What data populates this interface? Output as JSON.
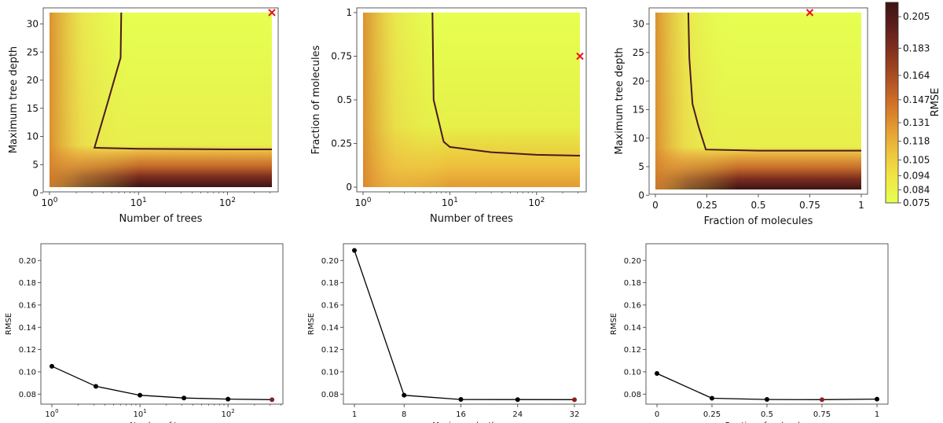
{
  "colormap": {
    "label": "RMSE",
    "min": 0.075,
    "max": 0.215,
    "ticks": [
      "0.075",
      "0.084",
      "0.094",
      "0.105",
      "0.118",
      "0.131",
      "0.147",
      "0.164",
      "0.183",
      "0.205"
    ],
    "stops": [
      "#e6ff50",
      "#f0e745",
      "#eec43c",
      "#e49a32",
      "#cf7028",
      "#ad4e23",
      "#86321f",
      "#5e1f1c",
      "#3d1415"
    ]
  },
  "marker_color": "#e8141c",
  "chart_data": [
    {
      "type": "heatmap",
      "id": "trees-vs-depth",
      "xlabel": "Number of trees",
      "ylabel": "Maximum tree depth",
      "xscale": "log",
      "xlim": [
        1,
        316
      ],
      "ylim": [
        1,
        32
      ],
      "xticks": [
        {
          "v": 1,
          "b": "10",
          "e": "0"
        },
        {
          "v": 10,
          "b": "10",
          "e": "1"
        },
        {
          "v": 100,
          "b": "10",
          "e": "2"
        }
      ],
      "yticks": [
        {
          "v": 0,
          "t": "0"
        },
        {
          "v": 5,
          "t": "5"
        },
        {
          "v": 10,
          "t": "10"
        },
        {
          "v": 15,
          "t": "15"
        },
        {
          "v": 20,
          "t": "20"
        },
        {
          "v": 25,
          "t": "25"
        },
        {
          "v": 30,
          "t": "30"
        }
      ],
      "contour": [
        [
          3.2,
          8
        ],
        [
          10,
          7.8
        ],
        [
          100,
          7.7
        ],
        [
          316,
          7.7
        ],
        [
          316,
          7.7
        ]
      ],
      "contour_left": [
        [
          3.2,
          8
        ],
        [
          4.5,
          16
        ],
        [
          6.3,
          24
        ],
        [
          6.4,
          32
        ]
      ],
      "best": [
        316,
        32
      ]
    },
    {
      "type": "heatmap",
      "id": "trees-vs-fraction",
      "xlabel": "Number of trees",
      "ylabel": "Fraction of molecules",
      "xscale": "log",
      "xlim": [
        1,
        316
      ],
      "ylim": [
        0,
        1
      ],
      "xticks": [
        {
          "v": 1,
          "b": "10",
          "e": "0"
        },
        {
          "v": 10,
          "b": "10",
          "e": "1"
        },
        {
          "v": 100,
          "b": "10",
          "e": "2"
        }
      ],
      "yticks": [
        {
          "v": 0,
          "t": "0"
        },
        {
          "v": 0.25,
          "t": "0.25"
        },
        {
          "v": 0.5,
          "t": "0.5"
        },
        {
          "v": 0.75,
          "t": "0.75"
        },
        {
          "v": 1,
          "t": "1"
        }
      ],
      "contour": [
        [
          6.3,
          1.0
        ],
        [
          6.5,
          0.5
        ],
        [
          8.5,
          0.26
        ],
        [
          10,
          0.23
        ],
        [
          30,
          0.2
        ],
        [
          100,
          0.185
        ],
        [
          316,
          0.18
        ]
      ],
      "best": [
        316,
        0.75
      ]
    },
    {
      "type": "heatmap",
      "id": "fraction-vs-depth",
      "xlabel": "Fraction of molecules",
      "ylabel": "Maximum tree depth",
      "xscale": "linear",
      "xlim": [
        0,
        1
      ],
      "ylim": [
        1,
        32
      ],
      "xticks": [
        {
          "v": 0,
          "t": "0"
        },
        {
          "v": 0.25,
          "t": "0.25"
        },
        {
          "v": 0.5,
          "t": "0.5"
        },
        {
          "v": 0.75,
          "t": "0.75"
        },
        {
          "v": 1,
          "t": "1"
        }
      ],
      "yticks": [
        {
          "v": 0,
          "t": "0"
        },
        {
          "v": 5,
          "t": "5"
        },
        {
          "v": 10,
          "t": "10"
        },
        {
          "v": 15,
          "t": "15"
        },
        {
          "v": 20,
          "t": "20"
        },
        {
          "v": 25,
          "t": "25"
        },
        {
          "v": 30,
          "t": "30"
        }
      ],
      "contour": [
        [
          0.16,
          32
        ],
        [
          0.165,
          24
        ],
        [
          0.18,
          16
        ],
        [
          0.21,
          12
        ],
        [
          0.245,
          8
        ],
        [
          0.5,
          7.8
        ],
        [
          1,
          7.8
        ]
      ],
      "best": [
        0.75,
        32
      ]
    },
    {
      "type": "line",
      "id": "rmse-vs-trees",
      "xlabel": "Number of trees",
      "ylabel": "RMSE",
      "xscale": "log",
      "xlim": [
        0.75,
        420
      ],
      "ylim": [
        0.071,
        0.215
      ],
      "xticks": [
        {
          "v": 1,
          "b": "10",
          "e": "0"
        },
        {
          "v": 10,
          "b": "10",
          "e": "1"
        },
        {
          "v": 100,
          "b": "10",
          "e": "2"
        }
      ],
      "yticks": [
        {
          "v": 0.08,
          "t": "0.08"
        },
        {
          "v": 0.1,
          "t": "0.10"
        },
        {
          "v": 0.12,
          "t": "0.12"
        },
        {
          "v": 0.14,
          "t": "0.14"
        },
        {
          "v": 0.16,
          "t": "0.16"
        },
        {
          "v": 0.18,
          "t": "0.18"
        },
        {
          "v": 0.2,
          "t": "0.20"
        }
      ],
      "x": [
        1,
        3.16,
        10,
        31.6,
        100,
        316
      ],
      "y": [
        0.105,
        0.087,
        0.079,
        0.0765,
        0.0755,
        0.075
      ],
      "best_index": 5
    },
    {
      "type": "line",
      "id": "rmse-vs-depth",
      "xlabel": "Maximum depth",
      "ylabel": "RMSE",
      "xscale": "linear",
      "xlim": [
        -0.55,
        33.55
      ],
      "ylim": [
        0.071,
        0.215
      ],
      "xticks": [
        {
          "v": 1,
          "t": "1"
        },
        {
          "v": 8,
          "t": "8"
        },
        {
          "v": 16,
          "t": "16"
        },
        {
          "v": 24,
          "t": "24"
        },
        {
          "v": 32,
          "t": "32"
        }
      ],
      "yticks": [
        {
          "v": 0.08,
          "t": "0.08"
        },
        {
          "v": 0.1,
          "t": "0.10"
        },
        {
          "v": 0.12,
          "t": "0.12"
        },
        {
          "v": 0.14,
          "t": "0.14"
        },
        {
          "v": 0.16,
          "t": "0.16"
        },
        {
          "v": 0.18,
          "t": "0.18"
        },
        {
          "v": 0.2,
          "t": "0.20"
        }
      ],
      "x": [
        1,
        8,
        16,
        24,
        32
      ],
      "y": [
        0.209,
        0.079,
        0.0752,
        0.0751,
        0.075
      ],
      "best_index": 4
    },
    {
      "type": "line",
      "id": "rmse-vs-fraction",
      "xlabel": "Fraction of molecules",
      "ylabel": "RMSE",
      "xscale": "linear",
      "xlim": [
        -0.05,
        1.05
      ],
      "ylim": [
        0.071,
        0.215
      ],
      "xticks": [
        {
          "v": 0,
          "t": "0"
        },
        {
          "v": 0.25,
          "t": "0.25"
        },
        {
          "v": 0.5,
          "t": "0.5"
        },
        {
          "v": 0.75,
          "t": "0.75"
        },
        {
          "v": 1,
          "t": "1"
        }
      ],
      "yticks": [
        {
          "v": 0.08,
          "t": "0.08"
        },
        {
          "v": 0.1,
          "t": "0.10"
        },
        {
          "v": 0.12,
          "t": "0.12"
        },
        {
          "v": 0.14,
          "t": "0.14"
        },
        {
          "v": 0.16,
          "t": "0.16"
        },
        {
          "v": 0.18,
          "t": "0.18"
        },
        {
          "v": 0.2,
          "t": "0.20"
        }
      ],
      "x": [
        0,
        0.25,
        0.5,
        0.75,
        1
      ],
      "y": [
        0.0985,
        0.0763,
        0.0752,
        0.075,
        0.0755
      ],
      "best_index": 3
    }
  ]
}
